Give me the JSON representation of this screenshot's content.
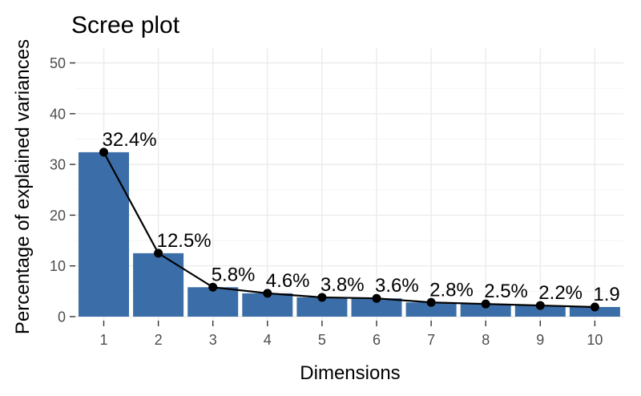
{
  "chart_data": {
    "type": "bar",
    "title": "Scree plot",
    "xlabel": "Dimensions",
    "ylabel": "Percentage of explained variances",
    "categories": [
      "1",
      "2",
      "3",
      "4",
      "5",
      "6",
      "7",
      "8",
      "9",
      "10"
    ],
    "values": [
      32.4,
      12.5,
      5.8,
      4.6,
      3.8,
      3.6,
      2.8,
      2.5,
      2.2,
      1.9
    ],
    "labels": [
      "32.4%",
      "12.5%",
      "5.8%",
      "4.6%",
      "3.8%",
      "3.6%",
      "2.8%",
      "2.5%",
      "2.2%",
      "1.9"
    ],
    "ylim": [
      0,
      52
    ],
    "yticks": [
      0,
      10,
      20,
      30,
      40,
      50
    ],
    "line_overlay": true,
    "grid": true,
    "colors": {
      "bar": "#3b6ea8",
      "line": "#000000",
      "point": "#000000"
    }
  }
}
